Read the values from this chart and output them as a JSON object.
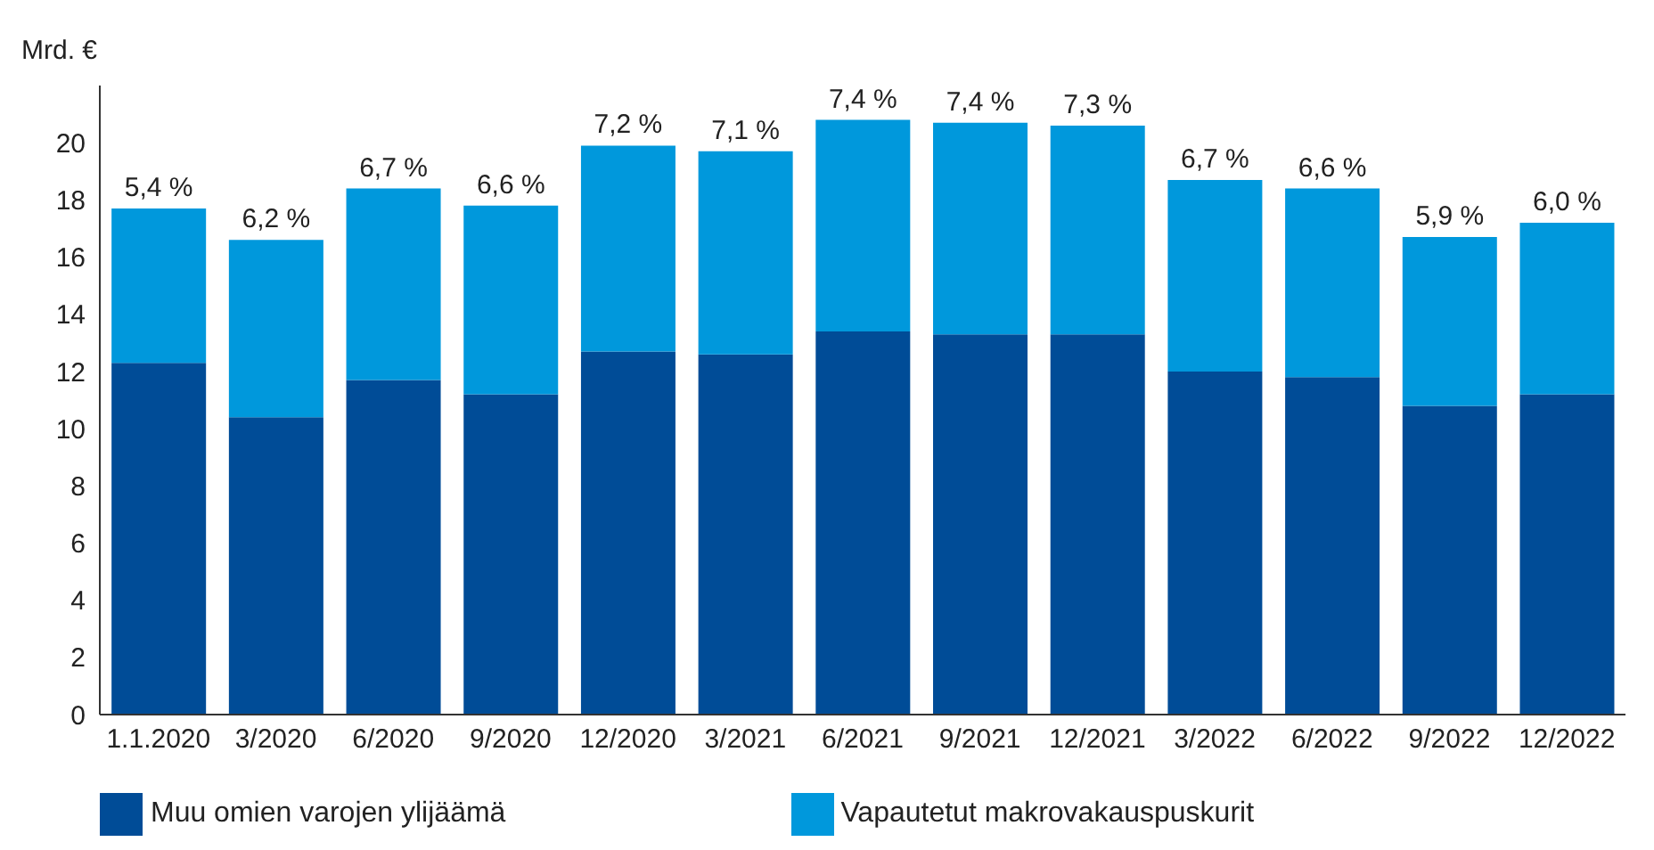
{
  "chart_data": {
    "type": "bar",
    "stacked": true,
    "ylabel": "Mrd. €",
    "categories": [
      "1.1.2020",
      "3/2020",
      "6/2020",
      "9/2020",
      "12/2020",
      "3/2021",
      "6/2021",
      "9/2021",
      "12/2021",
      "3/2022",
      "6/2022",
      "9/2022",
      "12/2022"
    ],
    "series": [
      {
        "name": "Muu omien varojen ylijäämä",
        "color": "#004c97",
        "values": [
          12.3,
          10.4,
          11.7,
          11.2,
          12.7,
          12.6,
          13.4,
          13.3,
          13.3,
          12.0,
          11.8,
          10.8,
          11.2
        ]
      },
      {
        "name": "Vapautetut makrovakauspuskurit",
        "color": "#0098dc",
        "values": [
          5.4,
          6.2,
          6.7,
          6.6,
          7.2,
          7.1,
          7.4,
          7.4,
          7.3,
          6.7,
          6.6,
          5.9,
          6.0
        ],
        "value_labels": [
          "5,4 %",
          "6,2 %",
          "6,7 %",
          "6,6 %",
          "7,2 %",
          "7,1 %",
          "7,4 %",
          "7,4 %",
          "7,3 %",
          "6,7 %",
          "6,6 %",
          "5,9 %",
          "6,0 %"
        ]
      }
    ],
    "ylim": [
      0,
      22
    ],
    "yticks": [
      0,
      2,
      4,
      6,
      8,
      10,
      12,
      14,
      16,
      18,
      20
    ],
    "grid": false,
    "legend": "bottom"
  }
}
